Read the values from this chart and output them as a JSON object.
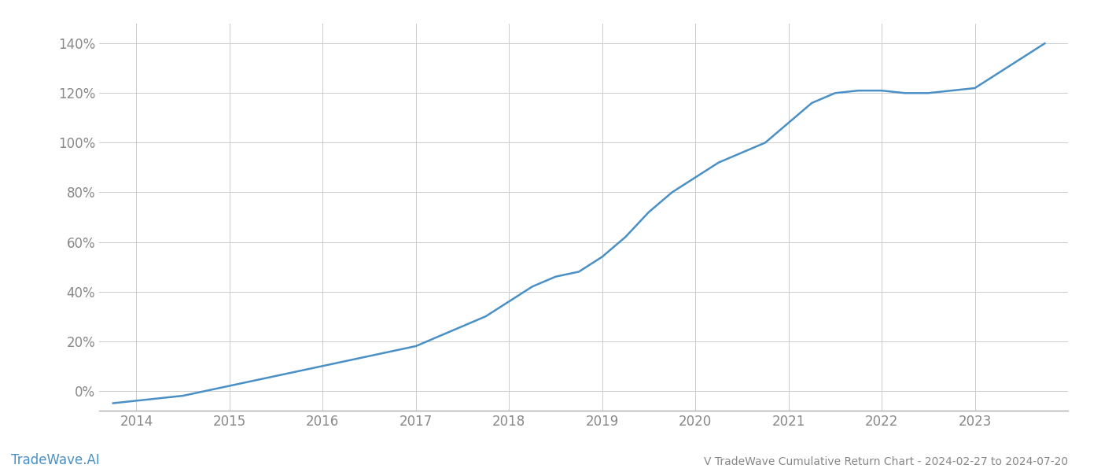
{
  "title": "V TradeWave Cumulative Return Chart - 2024-02-27 to 2024-07-20",
  "watermark": "TradeWave.AI",
  "line_color": "#4A90C4",
  "background_color": "#ffffff",
  "grid_color": "#cccccc",
  "x_values": [
    2013.75,
    2014.0,
    2014.25,
    2014.5,
    2014.75,
    2015.0,
    2015.25,
    2015.5,
    2015.75,
    2016.0,
    2016.25,
    2016.5,
    2016.75,
    2017.0,
    2017.25,
    2017.5,
    2017.75,
    2018.0,
    2018.25,
    2018.5,
    2018.75,
    2019.0,
    2019.25,
    2019.5,
    2019.75,
    2020.0,
    2020.25,
    2020.5,
    2020.75,
    2021.0,
    2021.25,
    2021.5,
    2021.75,
    2022.0,
    2022.25,
    2022.5,
    2022.75,
    2023.0,
    2023.25,
    2023.5,
    2023.75
  ],
  "y_values": [
    -5,
    -4,
    -3,
    -2,
    0,
    2,
    4,
    6,
    8,
    10,
    12,
    14,
    16,
    18,
    22,
    26,
    30,
    36,
    42,
    46,
    48,
    54,
    62,
    72,
    80,
    86,
    92,
    96,
    100,
    108,
    116,
    120,
    121,
    121,
    120,
    120,
    121,
    122,
    128,
    134,
    140
  ],
  "xlim": [
    2013.6,
    2024.0
  ],
  "ylim": [
    -8,
    148
  ],
  "yticks": [
    0,
    20,
    40,
    60,
    80,
    100,
    120,
    140
  ],
  "xticks": [
    2014,
    2015,
    2016,
    2017,
    2018,
    2019,
    2020,
    2021,
    2022,
    2023
  ],
  "tick_label_color": "#888888",
  "tick_fontsize": 12,
  "title_fontsize": 10,
  "watermark_fontsize": 12,
  "line_width": 1.8
}
